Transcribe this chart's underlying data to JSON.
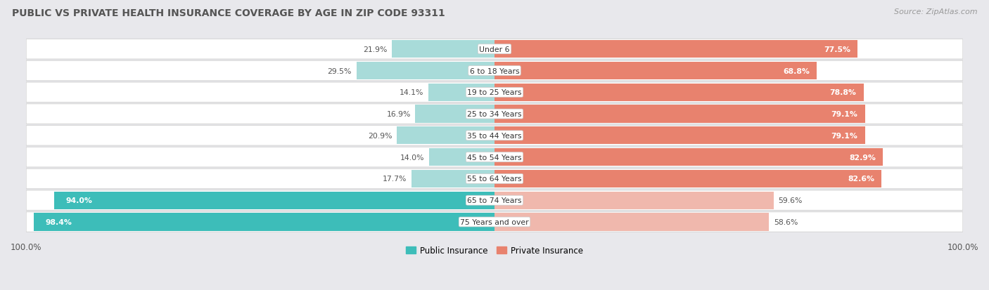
{
  "title": "PUBLIC VS PRIVATE HEALTH INSURANCE COVERAGE BY AGE IN ZIP CODE 93311",
  "source": "Source: ZipAtlas.com",
  "categories": [
    "Under 6",
    "6 to 18 Years",
    "19 to 25 Years",
    "25 to 34 Years",
    "35 to 44 Years",
    "45 to 54 Years",
    "55 to 64 Years",
    "65 to 74 Years",
    "75 Years and over"
  ],
  "public_values": [
    21.9,
    29.5,
    14.1,
    16.9,
    20.9,
    14.0,
    17.7,
    94.0,
    98.4
  ],
  "private_values": [
    77.5,
    68.8,
    78.8,
    79.1,
    79.1,
    82.9,
    82.6,
    59.6,
    58.6
  ],
  "public_color_strong": "#3dbdb9",
  "public_color_light": "#a8dbd9",
  "private_color_strong": "#e8826e",
  "private_color_light": "#f0b8ad",
  "row_bg_color": "#ffffff",
  "row_border_color": "#d8d8d8",
  "outer_bg_color": "#e8e8ec",
  "title_color": "#555555",
  "source_color": "#999999",
  "tick_color": "#555555",
  "label_dark": "#555555",
  "label_white": "#ffffff",
  "legend_public": "Public Insurance",
  "legend_private": "Private Insurance"
}
